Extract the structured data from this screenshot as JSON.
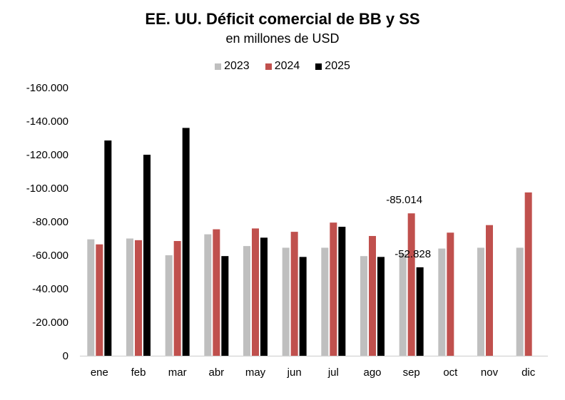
{
  "chart_data": {
    "type": "bar",
    "title": "EE. UU. Déficit comercial de BB y SS",
    "subtitle": "en millones de USD",
    "xlabel": "",
    "ylabel": "",
    "ylim": [
      0,
      -160000
    ],
    "yticks": [
      0,
      -20000,
      -40000,
      -60000,
      -80000,
      -100000,
      -120000,
      -140000,
      -160000
    ],
    "ytick_labels": [
      "0",
      "-20.000",
      "-40.000",
      "-60.000",
      "-80.000",
      "-100.000",
      "-120.000",
      "-140.000",
      "-160.000"
    ],
    "categories": [
      "ene",
      "feb",
      "mar",
      "abr",
      "may",
      "jun",
      "jul",
      "ago",
      "sep",
      "oct",
      "nov",
      "dic"
    ],
    "series": [
      {
        "name": "2023",
        "color": "#bfbfbf",
        "values": [
          -69500,
          -70000,
          -60000,
          -72500,
          -65500,
          -64500,
          -64500,
          -59500,
          -61000,
          -64000,
          -64500,
          -64500
        ]
      },
      {
        "name": "2024",
        "color": "#c0504d",
        "values": [
          -66500,
          -69000,
          -68500,
          -75500,
          -76000,
          -74000,
          -79500,
          -71500,
          -85014,
          -73500,
          -78000,
          -97500
        ]
      },
      {
        "name": "2025",
        "color": "#000000",
        "values": [
          -128500,
          -120000,
          -136000,
          -59500,
          -70500,
          -59000,
          -77000,
          -59000,
          -52828,
          null,
          null,
          null
        ]
      }
    ],
    "data_labels": [
      {
        "series": "2024",
        "category": "sep",
        "text": "-85.014"
      },
      {
        "series": "2025",
        "category": "sep",
        "text": "-52.828"
      }
    ],
    "legend_position": "top-center",
    "grid": false
  }
}
